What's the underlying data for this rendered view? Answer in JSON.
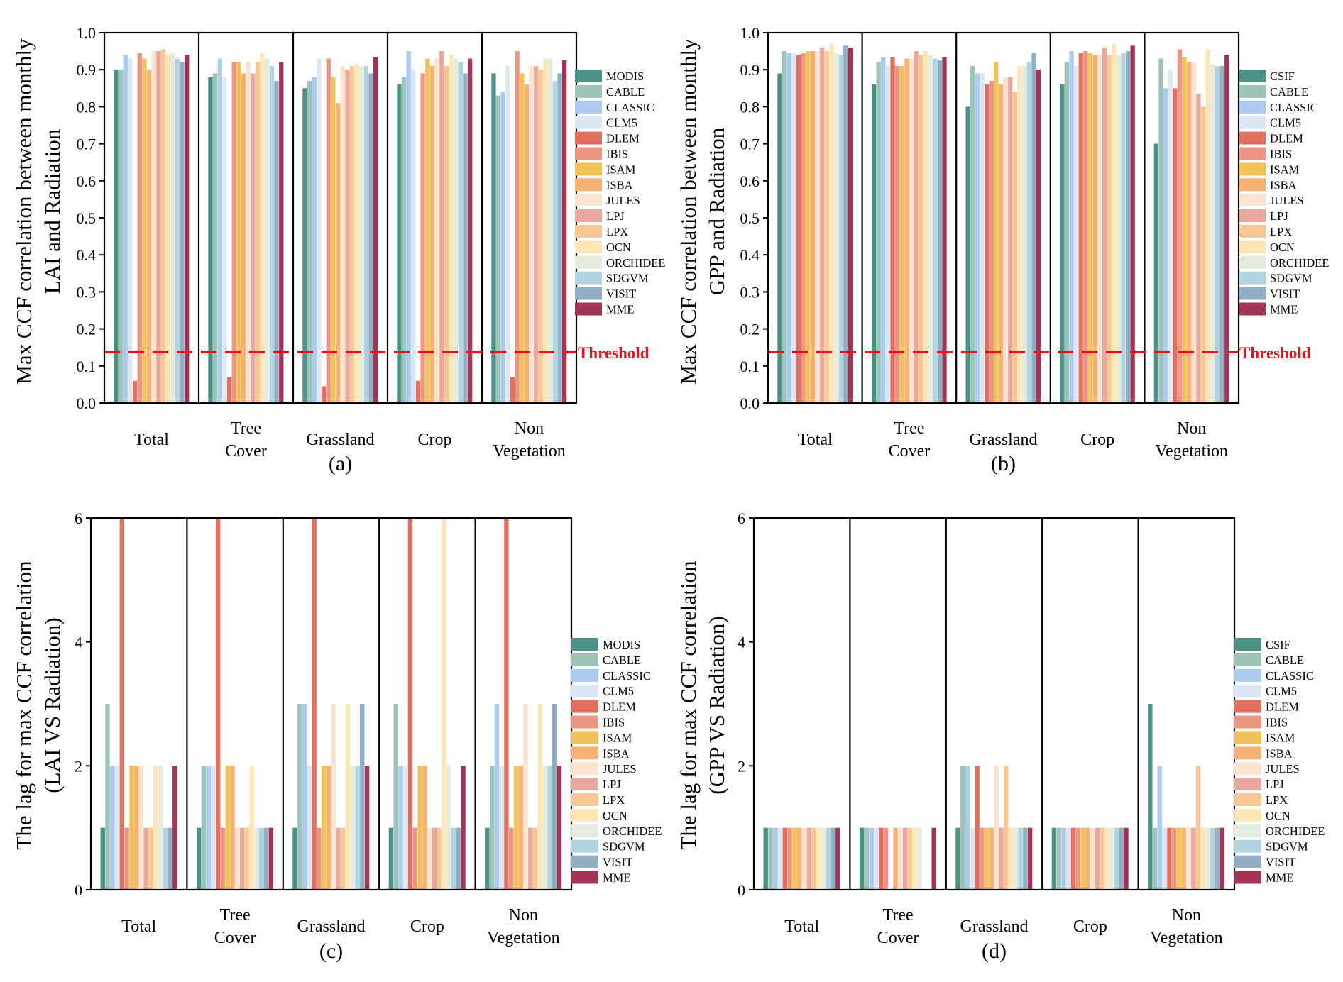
{
  "categories": [
    "Total",
    "Tree Cover",
    "Grassland",
    "Crop",
    "Non Vegetation"
  ],
  "category_lines": [
    [
      "Total"
    ],
    [
      "Tree",
      "Cover"
    ],
    [
      "Grassland"
    ],
    [
      "Crop"
    ],
    [
      "Non",
      "Vegetation"
    ]
  ],
  "threshold_label": "Threshold",
  "threshold_value": 0.138,
  "colors": [
    "#4a9085",
    "#9cc3b8",
    "#aacbee",
    "#dde6f4",
    "#e2705f",
    "#ec9582",
    "#f2c25a",
    "#f7b173",
    "#fae3cf",
    "#eaa79d",
    "#f8c692",
    "#fde6b5",
    "#e5ebde",
    "#b2d3e0",
    "#90aec4",
    "#a43454"
  ],
  "chart_data": [
    {
      "type": "bar",
      "panel_label": "(a)",
      "ylabel": [
        "Max CCF correlation between monthly",
        "LAI and Radiation"
      ],
      "ylim": [
        0,
        1.0
      ],
      "yticks": [
        "0.0",
        "0.1",
        "0.2",
        "0.3",
        "0.4",
        "0.5",
        "0.6",
        "0.7",
        "0.8",
        "0.9",
        "1.0"
      ],
      "ytick_values": [
        0,
        0.1,
        0.2,
        0.3,
        0.4,
        0.5,
        0.6,
        0.7,
        0.8,
        0.9,
        1.0
      ],
      "categories": [
        "Total",
        "Tree Cover",
        "Grassland",
        "Crop",
        "Non Vegetation"
      ],
      "threshold": 0.138,
      "legend": [
        "MODIS",
        "CABLE",
        "CLASSIC",
        "CLM5",
        "DLEM",
        "IBIS",
        "ISAM",
        "ISBA",
        "JULES",
        "LPJ",
        "LPX",
        "OCN",
        "ORCHIDEE",
        "SDGVM",
        "VISIT",
        "MME"
      ],
      "series": [
        {
          "name": "MODIS",
          "values": [
            0.9,
            0.88,
            0.85,
            0.86,
            0.89
          ]
        },
        {
          "name": "CABLE",
          "values": [
            0.9,
            0.89,
            0.87,
            0.88,
            0.83
          ]
        },
        {
          "name": "CLASSIC",
          "values": [
            0.94,
            0.93,
            0.88,
            0.95,
            0.84
          ]
        },
        {
          "name": "CLM5",
          "values": [
            0.93,
            0.88,
            0.93,
            0.9,
            0.91
          ]
        },
        {
          "name": "DLEM",
          "values": [
            0.06,
            0.07,
            0.045,
            0.06,
            0.07
          ]
        },
        {
          "name": "IBIS",
          "values": [
            0.945,
            0.92,
            0.93,
            0.89,
            0.95
          ]
        },
        {
          "name": "ISAM",
          "values": [
            0.93,
            0.92,
            0.88,
            0.93,
            0.89
          ]
        },
        {
          "name": "ISBA",
          "values": [
            0.9,
            0.89,
            0.81,
            0.91,
            0.86
          ]
        },
        {
          "name": "JULES",
          "values": [
            0.95,
            0.92,
            0.91,
            0.93,
            0.91
          ]
        },
        {
          "name": "LPJ",
          "values": [
            0.95,
            0.89,
            0.9,
            0.95,
            0.91
          ]
        },
        {
          "name": "LPX",
          "values": [
            0.955,
            0.92,
            0.91,
            0.91,
            0.9
          ]
        },
        {
          "name": "OCN",
          "values": [
            0.94,
            0.945,
            0.915,
            0.94,
            0.93
          ]
        },
        {
          "name": "ORCHIDEE",
          "values": [
            0.945,
            0.93,
            0.91,
            0.93,
            0.93
          ]
        },
        {
          "name": "SDGVM",
          "values": [
            0.93,
            0.91,
            0.91,
            0.92,
            0.87
          ]
        },
        {
          "name": "VISIT",
          "values": [
            0.92,
            0.87,
            0.89,
            0.89,
            0.89
          ]
        },
        {
          "name": "MME",
          "values": [
            0.94,
            0.92,
            0.935,
            0.93,
            0.925
          ]
        }
      ]
    },
    {
      "type": "bar",
      "panel_label": "(b)",
      "ylabel": [
        "Max CCF correlation between monthly",
        "GPP and Radiation"
      ],
      "ylim": [
        0,
        1.0
      ],
      "yticks": [
        "0.0",
        "0.1",
        "0.2",
        "0.3",
        "0.4",
        "0.5",
        "0.6",
        "0.7",
        "0.8",
        "0.9",
        "1.0"
      ],
      "ytick_values": [
        0,
        0.1,
        0.2,
        0.3,
        0.4,
        0.5,
        0.6,
        0.7,
        0.8,
        0.9,
        1.0
      ],
      "categories": [
        "Total",
        "Tree Cover",
        "Grassland",
        "Crop",
        "Non Vegetation"
      ],
      "threshold": 0.138,
      "legend": [
        "CSIF",
        "CABLE",
        "CLASSIC",
        "CLM5",
        "DLEM",
        "IBIS",
        "ISAM",
        "ISBA",
        "JULES",
        "LPJ",
        "LPX",
        "OCN",
        "ORCHIDEE",
        "SDGVM",
        "VISIT",
        "MME"
      ],
      "series": [
        {
          "name": "CSIF",
          "values": [
            0.89,
            0.86,
            0.8,
            0.86,
            0.7
          ]
        },
        {
          "name": "CABLE",
          "values": [
            0.95,
            0.92,
            0.91,
            0.92,
            0.93
          ]
        },
        {
          "name": "CLASSIC",
          "values": [
            0.945,
            0.935,
            0.89,
            0.95,
            0.85
          ]
        },
        {
          "name": "CLM5",
          "values": [
            0.945,
            0.91,
            0.89,
            0.91,
            0.9
          ]
        },
        {
          "name": "DLEM",
          "values": [
            0.94,
            0.935,
            0.86,
            0.945,
            0.85
          ]
        },
        {
          "name": "IBIS",
          "values": [
            0.945,
            0.91,
            0.87,
            0.95,
            0.955
          ]
        },
        {
          "name": "ISAM",
          "values": [
            0.95,
            0.91,
            0.92,
            0.945,
            0.935
          ]
        },
        {
          "name": "ISBA",
          "values": [
            0.95,
            0.93,
            0.86,
            0.94,
            0.92
          ]
        },
        {
          "name": "JULES",
          "values": [
            0.95,
            0.93,
            0.88,
            0.94,
            0.92
          ]
        },
        {
          "name": "LPJ",
          "values": [
            0.96,
            0.95,
            0.88,
            0.96,
            0.835
          ]
        },
        {
          "name": "LPX",
          "values": [
            0.95,
            0.94,
            0.84,
            0.94,
            0.8
          ]
        },
        {
          "name": "OCN",
          "values": [
            0.97,
            0.95,
            0.91,
            0.97,
            0.955
          ]
        },
        {
          "name": "ORCHIDEE",
          "values": [
            0.945,
            0.94,
            0.91,
            0.94,
            0.915
          ]
        },
        {
          "name": "SDGVM",
          "values": [
            0.94,
            0.93,
            0.92,
            0.945,
            0.91
          ]
        },
        {
          "name": "VISIT",
          "values": [
            0.965,
            0.925,
            0.945,
            0.95,
            0.91
          ]
        },
        {
          "name": "MME",
          "values": [
            0.96,
            0.935,
            0.9,
            0.965,
            0.94
          ]
        }
      ]
    },
    {
      "type": "bar",
      "panel_label": "(c)",
      "ylabel": [
        "The lag for max CCF correlation",
        "(LAI VS Radiation)"
      ],
      "ylim": [
        0,
        6
      ],
      "yticks": [
        "0",
        "2",
        "4",
        "6"
      ],
      "ytick_values": [
        0,
        2,
        4,
        6
      ],
      "categories": [
        "Total",
        "Tree Cover",
        "Grassland",
        "Crop",
        "Non Vegetation"
      ],
      "legend": [
        "MODIS",
        "CABLE",
        "CLASSIC",
        "CLM5",
        "DLEM",
        "IBIS",
        "ISAM",
        "ISBA",
        "JULES",
        "LPJ",
        "LPX",
        "OCN",
        "ORCHIDEE",
        "SDGVM",
        "VISIT",
        "MME"
      ],
      "series": [
        {
          "name": "MODIS",
          "values": [
            1,
            1,
            1,
            1,
            1
          ]
        },
        {
          "name": "CABLE",
          "values": [
            3,
            2,
            3,
            3,
            2
          ]
        },
        {
          "name": "CLASSIC",
          "values": [
            2,
            2,
            3,
            2,
            3
          ]
        },
        {
          "name": "CLM5",
          "values": [
            2,
            2,
            2,
            2,
            2
          ]
        },
        {
          "name": "DLEM",
          "values": [
            6,
            6,
            6,
            6,
            6
          ]
        },
        {
          "name": "IBIS",
          "values": [
            1,
            1,
            1,
            1,
            1
          ]
        },
        {
          "name": "ISAM",
          "values": [
            2,
            2,
            2,
            2,
            2
          ]
        },
        {
          "name": "ISBA",
          "values": [
            2,
            2,
            2,
            2,
            2
          ]
        },
        {
          "name": "JULES",
          "values": [
            2,
            1,
            3,
            1,
            3
          ]
        },
        {
          "name": "LPJ",
          "values": [
            1,
            1,
            1,
            1,
            1
          ]
        },
        {
          "name": "LPX",
          "values": [
            1,
            1,
            1,
            1,
            1
          ]
        },
        {
          "name": "OCN",
          "values": [
            2,
            2,
            3,
            6,
            3
          ]
        },
        {
          "name": "ORCHIDEE",
          "values": [
            2,
            1,
            2,
            2,
            2
          ]
        },
        {
          "name": "SDGVM",
          "values": [
            1,
            1,
            2,
            1,
            2
          ]
        },
        {
          "name": "VISIT",
          "values": [
            1,
            1,
            3,
            1,
            3
          ]
        },
        {
          "name": "MME",
          "values": [
            2,
            1,
            2,
            2,
            2
          ]
        }
      ]
    },
    {
      "type": "bar",
      "panel_label": "(d)",
      "ylabel": [
        "The lag for max CCF correlation",
        "(GPP VS Radiation)"
      ],
      "ylim": [
        0,
        6
      ],
      "yticks": [
        "0",
        "2",
        "4",
        "6"
      ],
      "ytick_values": [
        0,
        2,
        4,
        6
      ],
      "categories": [
        "Total",
        "Tree Cover",
        "Grassland",
        "Crop",
        "Non Vegetation"
      ],
      "legend": [
        "CSIF",
        "CABLE",
        "CLASSIC",
        "CLM5",
        "DLEM",
        "IBIS",
        "ISAM",
        "ISBA",
        "JULES",
        "LPJ",
        "LPX",
        "OCN",
        "ORCHIDEE",
        "SDGVM",
        "VISIT",
        "MME"
      ],
      "series": [
        {
          "name": "CSIF",
          "values": [
            1,
            1,
            1,
            1,
            3
          ]
        },
        {
          "name": "CABLE",
          "values": [
            1,
            1,
            2,
            1,
            1
          ]
        },
        {
          "name": "CLASSIC",
          "values": [
            1,
            1,
            2,
            1,
            2
          ]
        },
        {
          "name": "CLM5",
          "values": [
            1,
            1,
            1,
            1,
            1
          ]
        },
        {
          "name": "DLEM",
          "values": [
            1,
            1,
            2,
            1,
            1
          ]
        },
        {
          "name": "IBIS",
          "values": [
            1,
            1,
            1,
            1,
            1
          ]
        },
        {
          "name": "ISAM",
          "values": [
            1,
            0,
            1,
            1,
            1
          ]
        },
        {
          "name": "ISBA",
          "values": [
            1,
            1,
            1,
            1,
            1
          ]
        },
        {
          "name": "JULES",
          "values": [
            1,
            1,
            2,
            1,
            1
          ]
        },
        {
          "name": "LPJ",
          "values": [
            1,
            1,
            1,
            1,
            1
          ]
        },
        {
          "name": "LPX",
          "values": [
            1,
            1,
            2,
            1,
            2
          ]
        },
        {
          "name": "OCN",
          "values": [
            1,
            1,
            1,
            1,
            1
          ]
        },
        {
          "name": "ORCHIDEE",
          "values": [
            1,
            1,
            1,
            1,
            1
          ]
        },
        {
          "name": "SDGVM",
          "values": [
            1,
            0,
            1,
            1,
            1
          ]
        },
        {
          "name": "VISIT",
          "values": [
            1,
            0,
            1,
            1,
            1
          ]
        },
        {
          "name": "MME",
          "values": [
            1,
            1,
            1,
            1,
            1
          ]
        }
      ]
    }
  ]
}
